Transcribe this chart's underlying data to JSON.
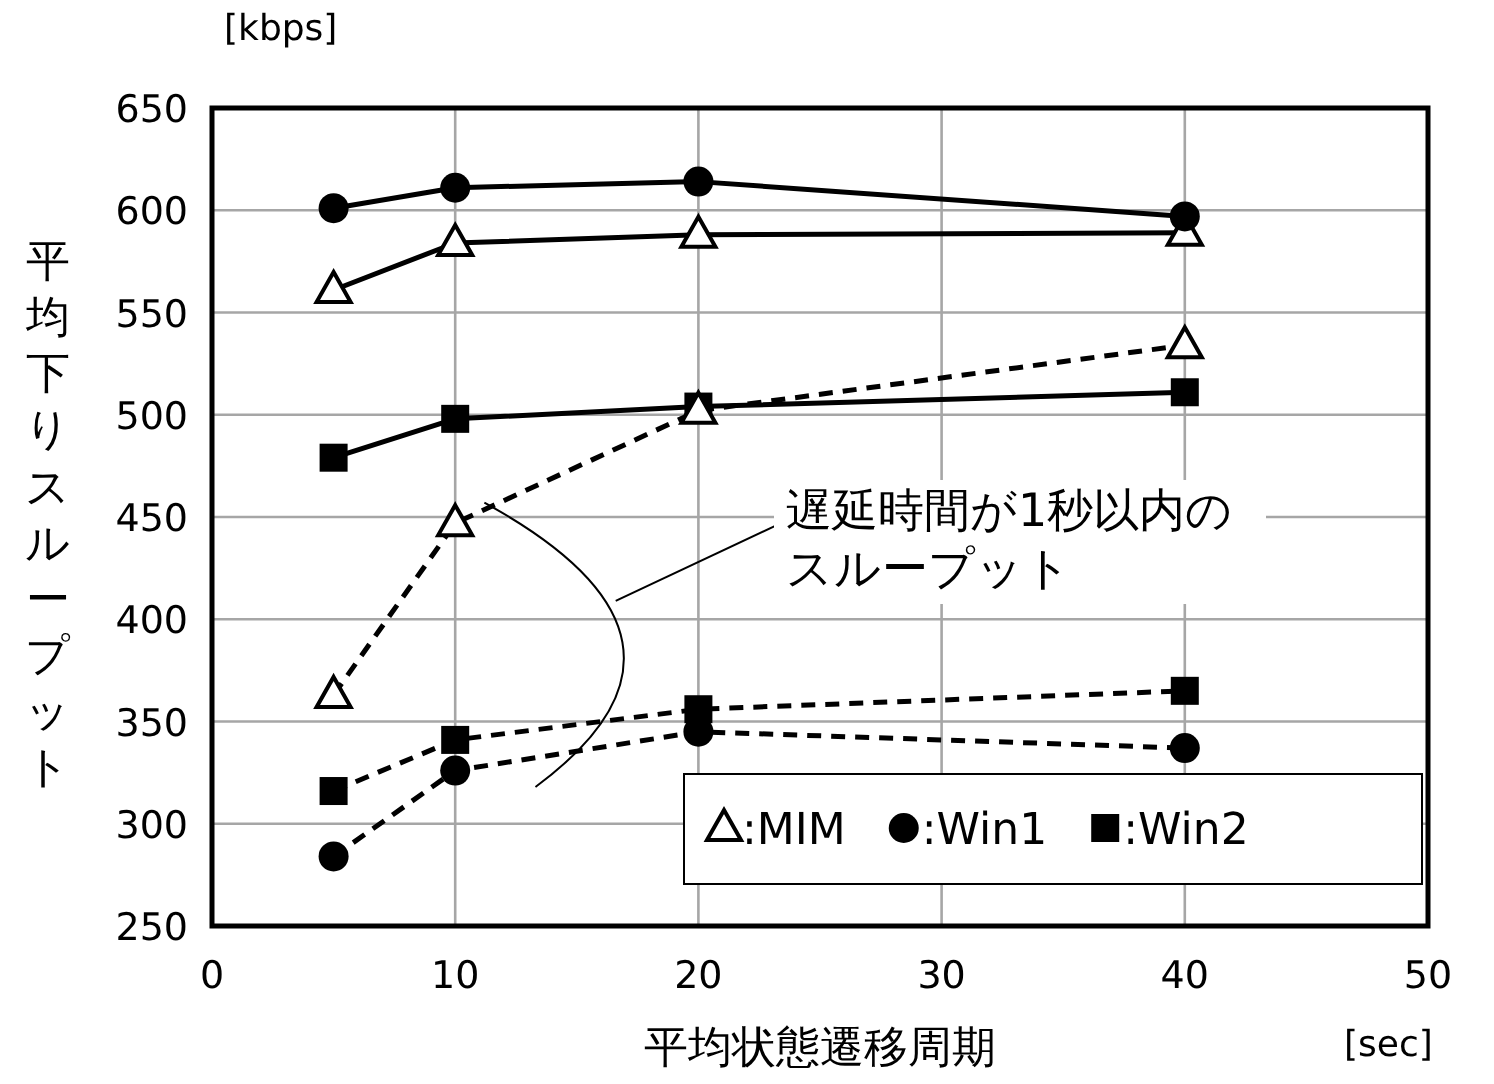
{
  "chart_data": {
    "type": "line",
    "xlabel": "平均状態遷移周期",
    "ylabel": "平均下りスループット",
    "x": [
      5,
      10,
      20,
      40
    ],
    "xlim": [
      0,
      50
    ],
    "xticks": [
      0,
      10,
      20,
      30,
      40,
      50
    ],
    "ylim": [
      250,
      650
    ],
    "yticks": [
      250,
      300,
      350,
      400,
      450,
      500,
      550,
      600,
      650
    ],
    "grid": true,
    "legend": "bottom right",
    "series": [
      {
        "name": ":MIM",
        "color": "#000000",
        "marker": "triangle",
        "line_style": "solid",
        "values": [
          561,
          584,
          588,
          589
        ]
      },
      {
        "name": ":Win1",
        "color": "#000000",
        "marker": "circle",
        "line_style": "solid",
        "values": [
          601,
          611,
          614,
          597
        ]
      },
      {
        "name": ":Win2",
        "color": "#000000",
        "marker": "square",
        "line_style": "solid",
        "values": [
          479,
          498,
          504,
          511
        ]
      },
      {
        "color": "#000000",
        "marker": "triangle",
        "line_style": "dashed",
        "values": [
          363,
          447,
          502,
          534
        ]
      },
      {
        "color": "#000000",
        "marker": "circle",
        "line_style": "dashed",
        "values": [
          284,
          326,
          345,
          337
        ]
      },
      {
        "color": "#000000",
        "marker": "square",
        "line_style": "dashed",
        "values": [
          316,
          341,
          356,
          365
        ]
      }
    ],
    "annotations": [
      "遅延時間が1秒以内のスループット",
      "[kbps]",
      "[sec]"
    ]
  }
}
